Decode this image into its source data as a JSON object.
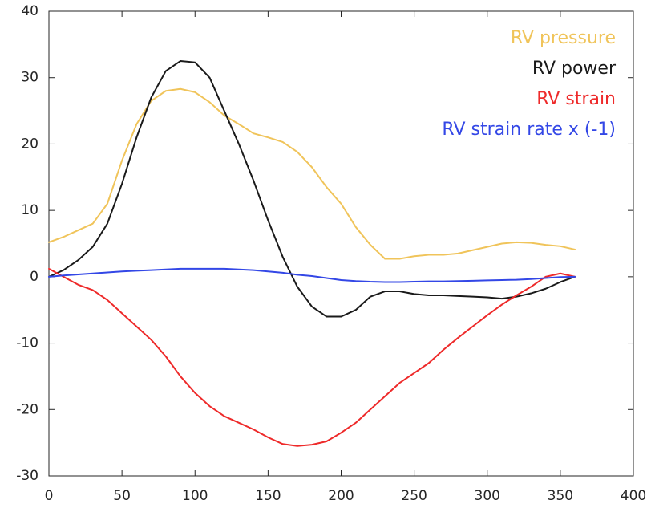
{
  "chart_data": {
    "type": "line",
    "x": [
      0,
      10,
      20,
      30,
      40,
      50,
      60,
      70,
      80,
      90,
      100,
      110,
      120,
      130,
      140,
      150,
      160,
      170,
      180,
      190,
      200,
      210,
      220,
      230,
      240,
      250,
      260,
      270,
      280,
      290,
      300,
      310,
      320,
      330,
      340,
      350,
      360
    ],
    "series": [
      {
        "name": "RV pressure",
        "color": "#f0c45a",
        "values": [
          5.2,
          6,
          7,
          8,
          11,
          17.5,
          23,
          26.5,
          28,
          28.3,
          27.8,
          26.3,
          24.3,
          23,
          21.6,
          21,
          20.3,
          18.8,
          16.5,
          13.5,
          11,
          7.5,
          4.8,
          2.7,
          2.7,
          3.1,
          3.3,
          3.3,
          3.5,
          4,
          4.5,
          5,
          5.2,
          5.1,
          4.8,
          4.6,
          4.1
        ]
      },
      {
        "name": "RV power",
        "color": "#1a1a1a",
        "values": [
          0,
          1,
          2.5,
          4.5,
          8,
          14,
          21,
          27,
          31,
          32.5,
          32.3,
          30,
          25,
          20,
          14.5,
          8.5,
          3,
          -1.5,
          -4.5,
          -6,
          -6,
          -5,
          -3,
          -2.2,
          -2.2,
          -2.6,
          -2.8,
          -2.8,
          -2.9,
          -3,
          -3.1,
          -3.3,
          -3,
          -2.5,
          -1.8,
          -0.8,
          0
        ]
      },
      {
        "name": "RV strain",
        "color": "#ee2a2a",
        "values": [
          1.2,
          0,
          -1.2,
          -2,
          -3.5,
          -5.5,
          -7.5,
          -9.5,
          -12,
          -15,
          -17.5,
          -19.5,
          -21,
          -22,
          -23,
          -24.2,
          -25.2,
          -25.5,
          -25.3,
          -24.8,
          -23.5,
          -22,
          -20,
          -18,
          -16,
          -14.5,
          -13,
          -11,
          -9.2,
          -7.5,
          -5.8,
          -4.2,
          -2.8,
          -1.5,
          0,
          0.5,
          0
        ]
      },
      {
        "name": "RV strain rate x (-1)",
        "color": "#3347e6",
        "values": [
          0,
          0.2,
          0.35,
          0.5,
          0.65,
          0.8,
          0.9,
          1,
          1.1,
          1.2,
          1.2,
          1.2,
          1.2,
          1.1,
          1,
          0.8,
          0.6,
          0.3,
          0.1,
          -0.2,
          -0.5,
          -0.65,
          -0.75,
          -0.8,
          -0.8,
          -0.75,
          -0.7,
          -0.7,
          -0.65,
          -0.6,
          -0.55,
          -0.5,
          -0.45,
          -0.35,
          -0.2,
          -0.05,
          0
        ]
      }
    ],
    "xlim": [
      0,
      400
    ],
    "xticks": [
      0,
      50,
      100,
      150,
      200,
      250,
      300,
      350,
      400
    ],
    "ylim": [
      -30,
      40
    ],
    "yticks": [
      -30,
      -20,
      -10,
      0,
      10,
      20,
      30,
      40
    ],
    "legend": "upper right"
  }
}
